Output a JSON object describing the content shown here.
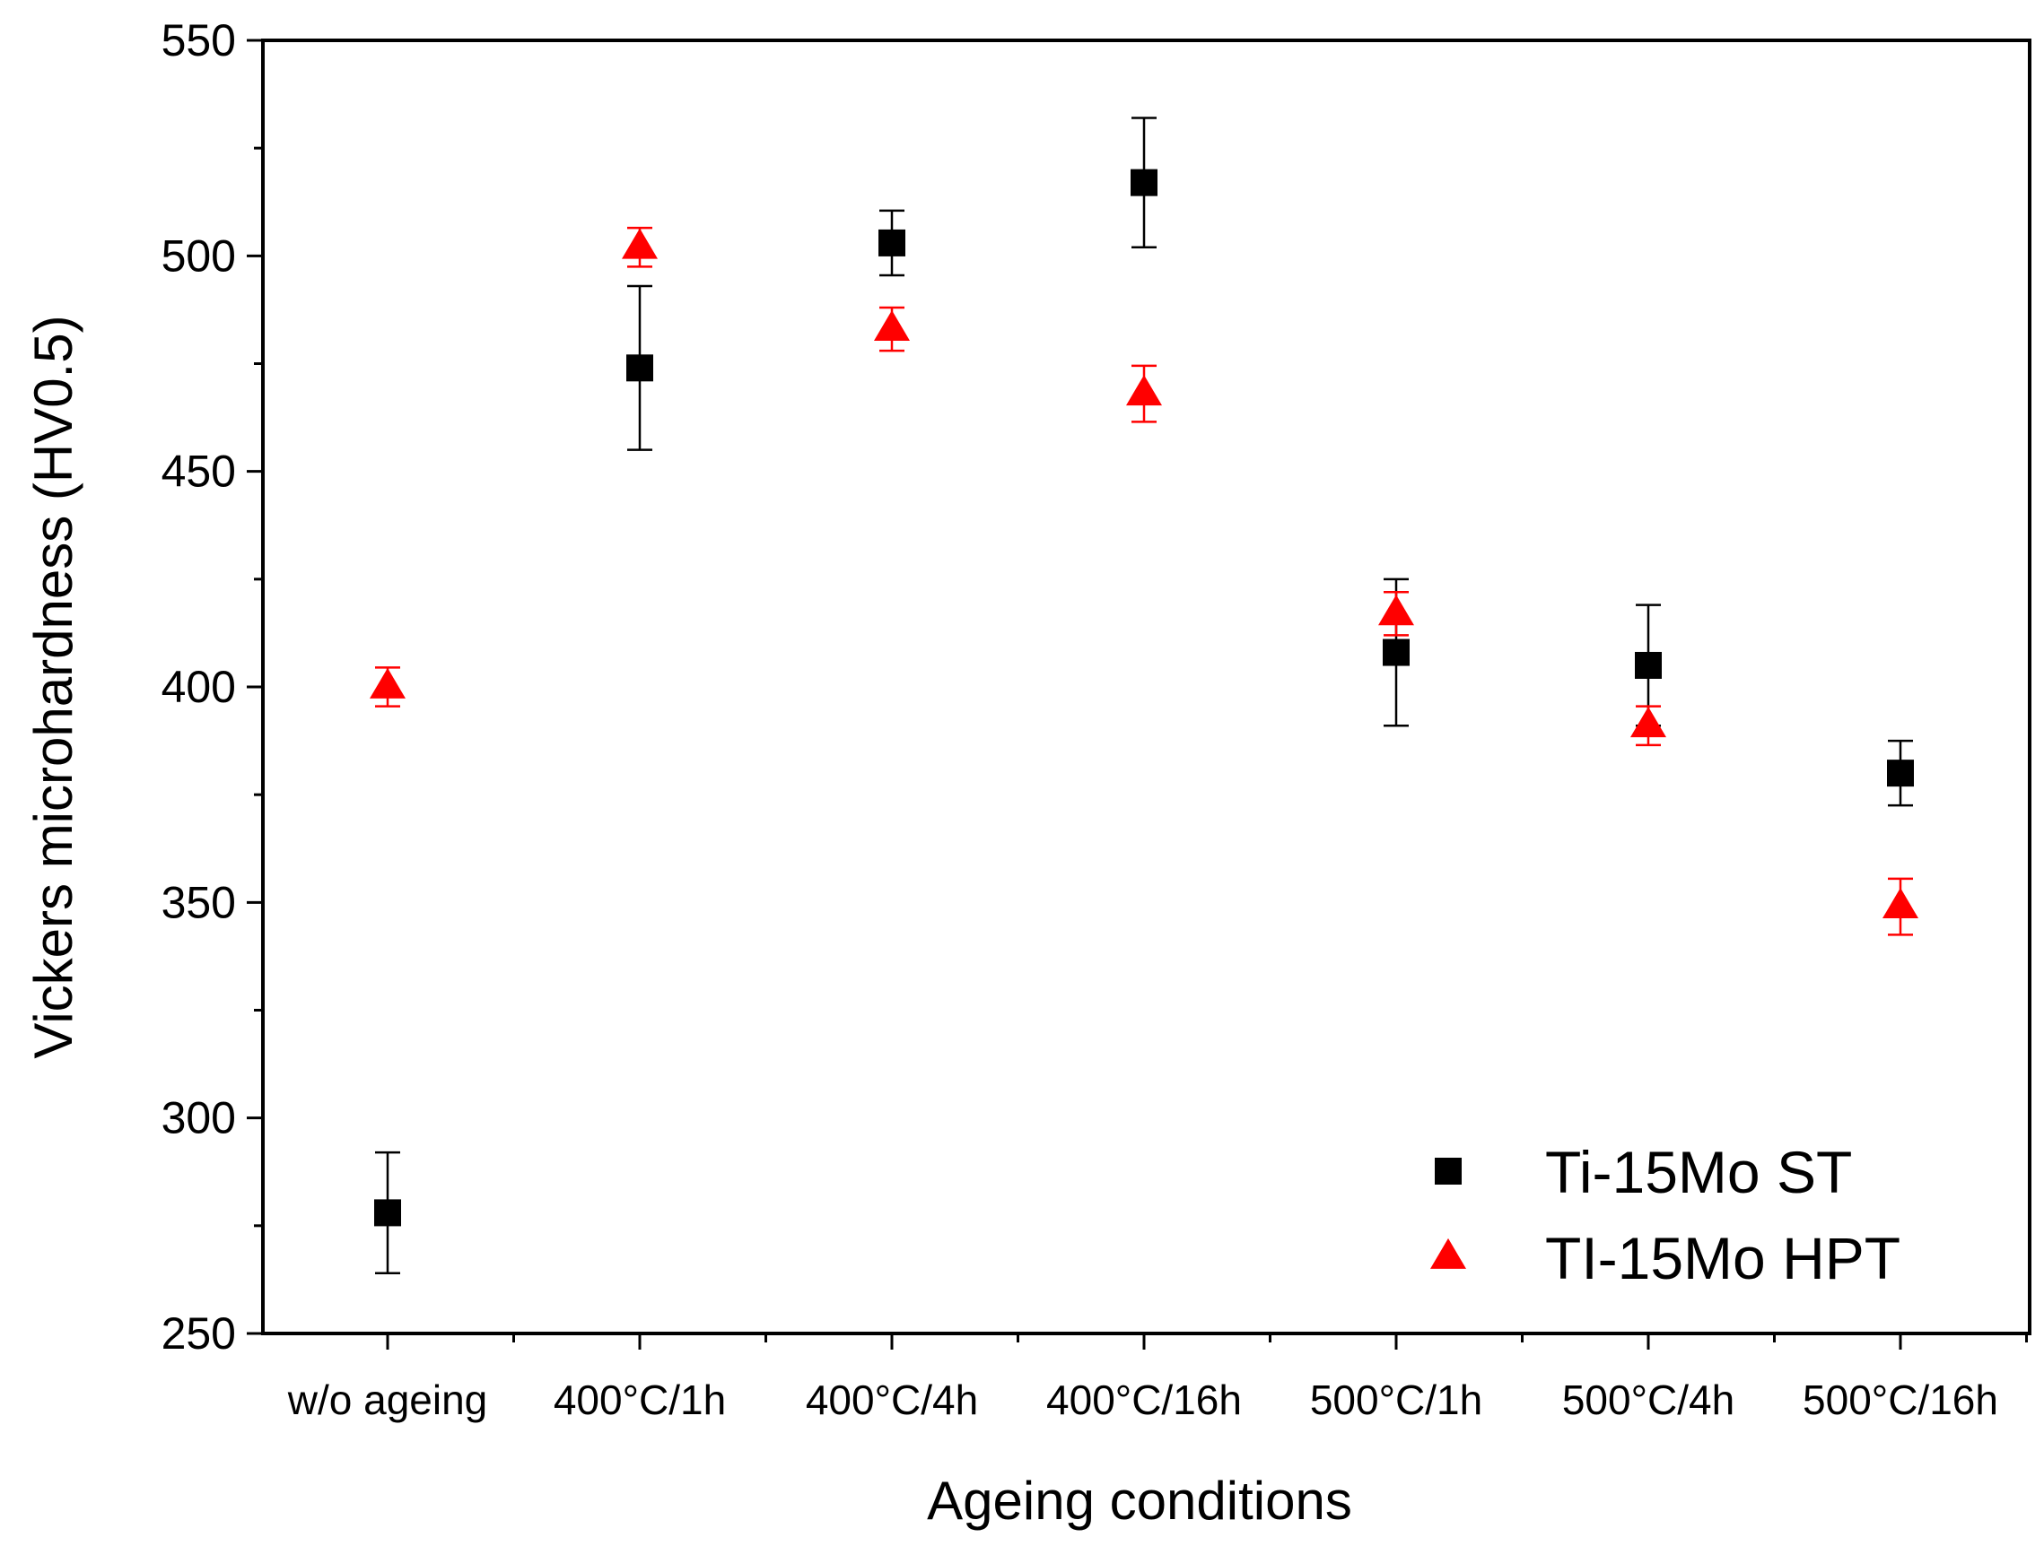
{
  "chart_data": {
    "type": "scatter",
    "title": "",
    "xlabel": "Ageing conditions",
    "ylabel": "Vickers microhardness (HV0.5)",
    "categories": [
      "w/o ageing",
      "400°C/1h",
      "400°C/4h",
      "400°C/16h",
      "500°C/1h",
      "500°C/4h",
      "500°C/16h"
    ],
    "ylim": [
      250,
      550
    ],
    "yticks": [
      250,
      300,
      350,
      400,
      450,
      500,
      550
    ],
    "grid": false,
    "legend_position": "bottom-right",
    "series": [
      {
        "name": "Ti-15Mo ST",
        "marker": "square",
        "color": "#000000",
        "values": [
          278,
          474,
          503,
          517,
          408,
          405,
          380
        ],
        "errors": [
          14,
          19,
          7.5,
          15,
          17,
          14,
          7.5
        ]
      },
      {
        "name": "TI-15Mo HPT",
        "marker": "triangle",
        "color": "#ff0000",
        "values": [
          400,
          502,
          483,
          468,
          417,
          391,
          349
        ],
        "errors": [
          4.5,
          4.5,
          5,
          6.5,
          5,
          4.5,
          6.5
        ]
      }
    ]
  }
}
